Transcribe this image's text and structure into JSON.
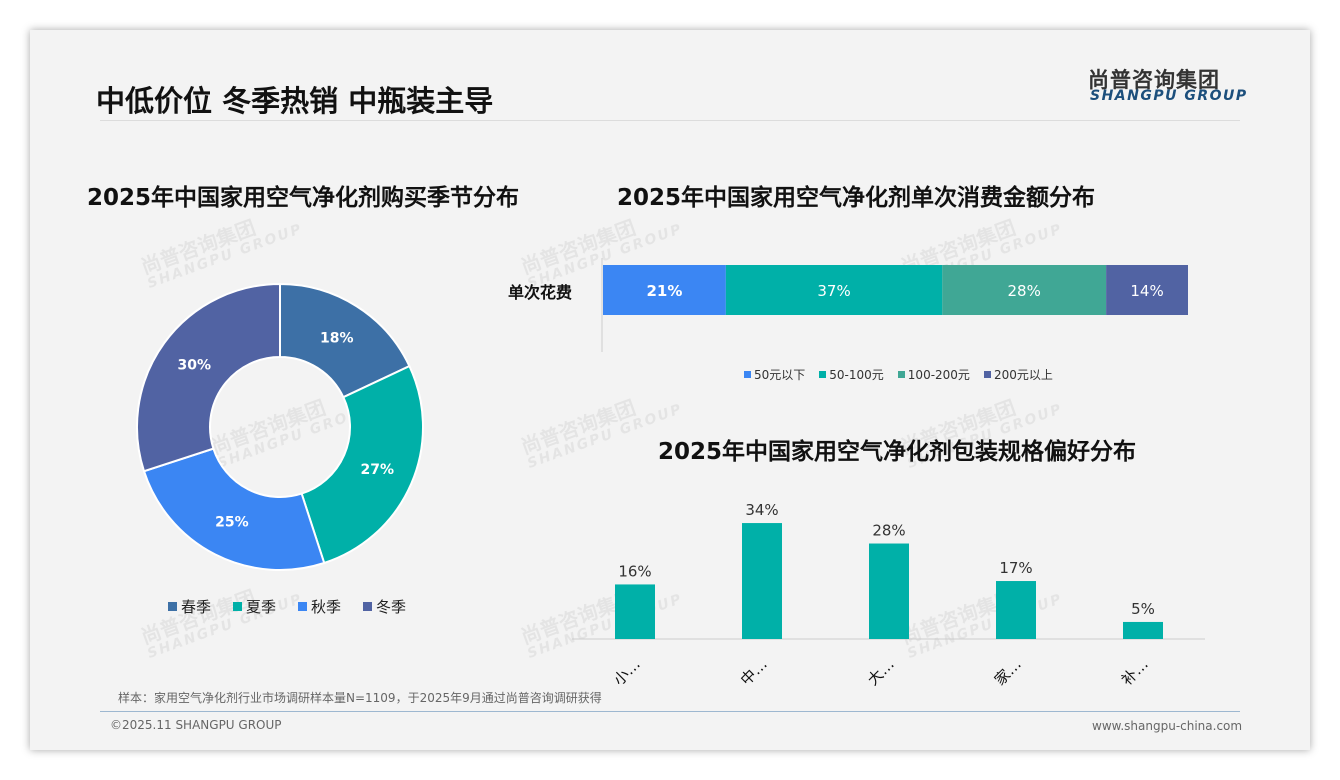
{
  "header": {
    "title": "中低价位 冬季热销 中瓶装主导",
    "logo_cn": "尚普咨询集团",
    "logo_en": "SHANGPU GROUP"
  },
  "watermark": {
    "cn": "尚普咨询集团",
    "en": "SHANGPU GROUP"
  },
  "footer": {
    "note": "样本：家用空气净化剂行业市场调研样本量N=1109，于2025年9月通过尚普咨询调研获得",
    "copyright": "©2025.11 SHANGPU GROUP",
    "website": "www.shangpu-china.com"
  },
  "chart_data": [
    {
      "type": "pie",
      "title": "2025年中国家用空气净化剂购买季节分布",
      "categories": [
        "春季",
        "夏季",
        "秋季",
        "冬季"
      ],
      "values": [
        18,
        27,
        25,
        30
      ],
      "labels": [
        "18%",
        "27%",
        "25%",
        "30%"
      ],
      "colors": [
        "#3d70a6",
        "#00b0a8",
        "#3b86f3",
        "#5163a3"
      ],
      "legend": "bottom"
    },
    {
      "type": "bar",
      "stacked": true,
      "orientation": "horizontal",
      "title": "2025年中国家用空气净化剂单次消费金额分布",
      "categories": [
        "单次花费"
      ],
      "series": [
        {
          "name": "50元以下",
          "values": [
            21
          ],
          "label": "21%",
          "color": "#3b86f3"
        },
        {
          "name": "50-100元",
          "values": [
            37
          ],
          "label": "37%",
          "color": "#00b0a8"
        },
        {
          "name": "100-200元",
          "values": [
            28
          ],
          "label": "28%",
          "color": "#40a795"
        },
        {
          "name": "200元以上",
          "values": [
            14
          ],
          "label": "14%",
          "color": "#5163a3"
        }
      ],
      "legend": "bottom"
    },
    {
      "type": "bar",
      "title": "2025年中国家用空气净化剂包装规格偏好分布",
      "categories": [
        "小…",
        "中…",
        "大…",
        "家…",
        "补…"
      ],
      "values": [
        16,
        34,
        28,
        17,
        5
      ],
      "labels": [
        "16%",
        "34%",
        "28%",
        "17%",
        "5%"
      ],
      "color": "#00b0a8"
    }
  ]
}
